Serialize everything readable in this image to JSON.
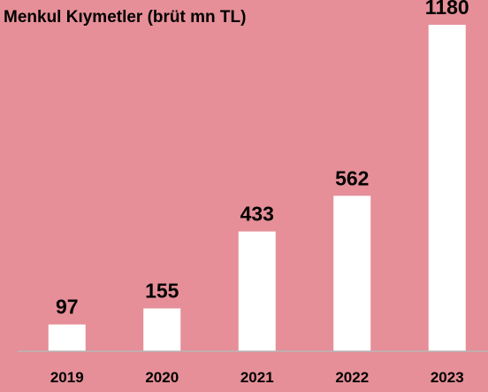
{
  "chart_data": {
    "type": "bar",
    "title": "Menkul Kıymetler (brüt mn TL)",
    "categories": [
      "2019",
      "2020",
      "2021",
      "2022",
      "2023"
    ],
    "values": [
      97,
      155,
      433,
      562,
      1180
    ],
    "color": "#ffffff"
  }
}
